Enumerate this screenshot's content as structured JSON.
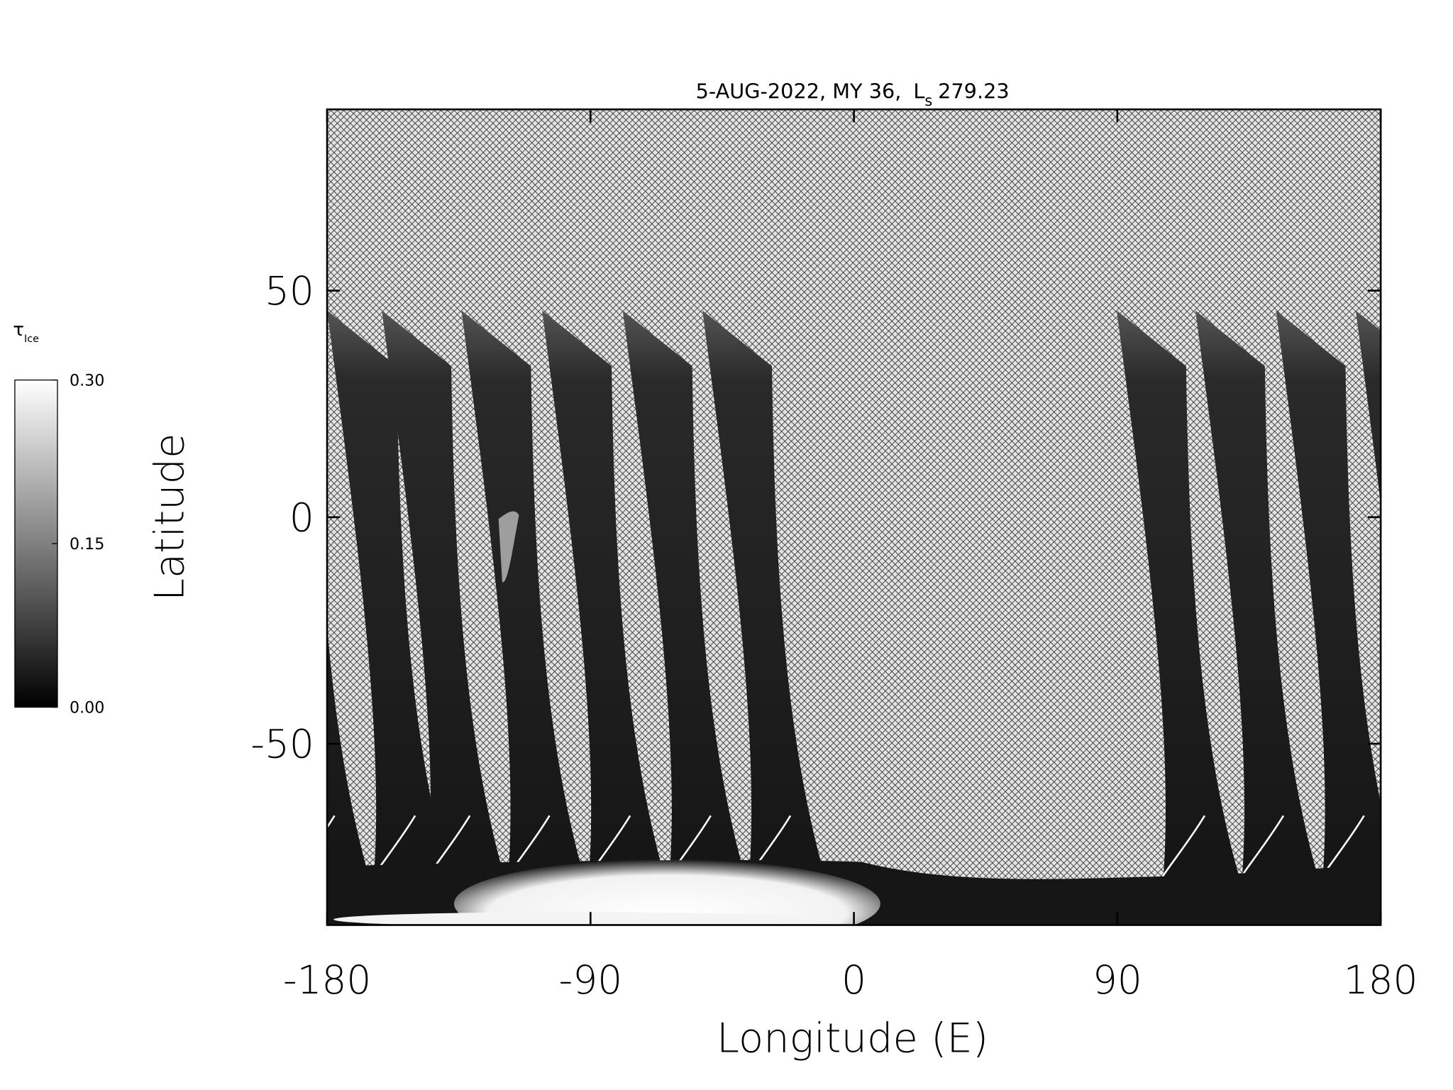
{
  "chart_data": {
    "type": "map",
    "title": {
      "date": "5-AUG-2022, MY 36,",
      "symbol": "L",
      "subscript": "s",
      "value": "279.23"
    },
    "x_label": "Longitude (E)",
    "y_label": "Latitude",
    "xlim": [
      -180,
      180
    ],
    "xticks": [
      -180,
      -90,
      0,
      90,
      180
    ],
    "ylim": [
      -90,
      90
    ],
    "yticks": [
      -50,
      0,
      50
    ],
    "colorbar": {
      "symbol": "τ",
      "subscript": "Ice",
      "colors": [
        "#000000",
        "#ffffff"
      ],
      "lim": [
        0,
        0.3
      ],
      "ticks": [
        {
          "value": 0,
          "label": "0.00"
        },
        {
          "value": 0.15,
          "label": "0.15"
        },
        {
          "value": 0.3,
          "label": "0.30"
        }
      ]
    }
  }
}
